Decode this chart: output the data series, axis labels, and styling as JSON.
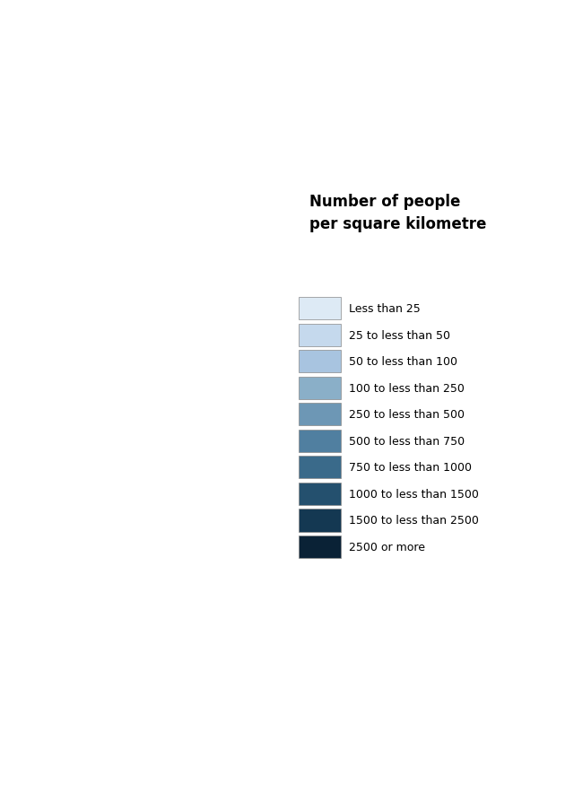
{
  "title": "Number of people\nper square kilometre",
  "legend_labels": [
    "Less than 25",
    "25 to less than 50",
    "50 to less than 100",
    "100 to less than 250",
    "250 to less than 500",
    "500 to less than 750",
    "750 to less than 1000",
    "1000 to less than 1500",
    "1500 to less than 2500",
    "2500 or more"
  ],
  "legend_colors": [
    "#ddeaf5",
    "#c5d9ed",
    "#a8c4e0",
    "#8aafc8",
    "#6d97b5",
    "#507fa0",
    "#3a6a8a",
    "#24506e",
    "#143852",
    "#0a2236"
  ],
  "background_color": "#ffffff",
  "border_color": "#555555",
  "title_fontsize": 12,
  "legend_fontsize": 9,
  "figsize": [
    6.4,
    9.04
  ],
  "dpi": 100
}
